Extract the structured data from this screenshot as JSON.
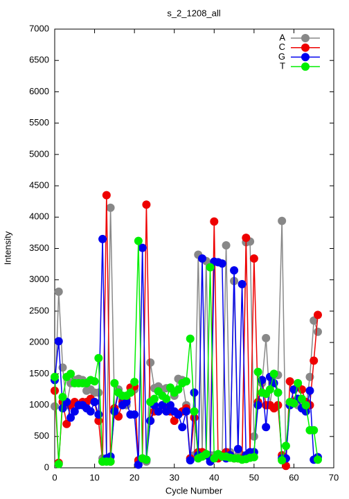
{
  "chart_data": {
    "type": "line",
    "title": "s_2_1208_all",
    "x_label": "Cycle Number",
    "y_label": "Intensity",
    "x": [
      0,
      1,
      2,
      3,
      4,
      5,
      6,
      7,
      8,
      9,
      10,
      11,
      12,
      13,
      14,
      15,
      16,
      17,
      18,
      19,
      20,
      21,
      22,
      23,
      24,
      25,
      26,
      27,
      28,
      29,
      30,
      31,
      32,
      33,
      34,
      35,
      36,
      37,
      38,
      39,
      40,
      41,
      42,
      43,
      44,
      45,
      46,
      47,
      48,
      49,
      50,
      51,
      52,
      53,
      54,
      55,
      56,
      57,
      58,
      59,
      60,
      61,
      62,
      63,
      64,
      65,
      66
    ],
    "xlim": [
      0,
      70
    ],
    "xticks": [
      0,
      10,
      20,
      30,
      40,
      50,
      60,
      70
    ],
    "ylim": [
      0,
      7000
    ],
    "yticks": [
      0,
      500,
      1000,
      1500,
      2000,
      2500,
      3000,
      3500,
      4000,
      4500,
      5000,
      5500,
      6000,
      6500,
      7000
    ],
    "legend": "top-right",
    "series": [
      {
        "name": "A",
        "color": "#888888",
        "values": [
          980,
          2810,
          1600,
          1000,
          1350,
          1400,
          1420,
          1400,
          1230,
          1250,
          1200,
          1200,
          150,
          150,
          4150,
          950,
          1250,
          1100,
          1000,
          1200,
          1250,
          100,
          150,
          100,
          1680,
          1270,
          1300,
          1250,
          1270,
          1270,
          1150,
          1420,
          1400,
          1000,
          150,
          200,
          3400,
          250,
          3300,
          200,
          200,
          200,
          200,
          3550,
          250,
          2980,
          200,
          200,
          3600,
          3610,
          500,
          1000,
          1350,
          2070,
          1000,
          1480,
          1480,
          3940,
          150,
          1000,
          1050,
          1000,
          1000,
          950,
          1450,
          2350,
          2170
        ]
      },
      {
        "name": "C",
        "color": "#ee0000",
        "values": [
          1230,
          80,
          1050,
          700,
          1000,
          1050,
          1000,
          1050,
          1050,
          1100,
          1050,
          750,
          100,
          4350,
          100,
          950,
          820,
          1050,
          1100,
          1280,
          1300,
          120,
          150,
          4200,
          750,
          900,
          900,
          1000,
          950,
          900,
          750,
          850,
          900,
          950,
          150,
          800,
          250,
          250,
          200,
          150,
          3930,
          150,
          200,
          250,
          200,
          150,
          150,
          150,
          3670,
          200,
          3340,
          1050,
          1400,
          1000,
          1000,
          950,
          1000,
          200,
          30,
          1380,
          1050,
          1300,
          1250,
          1050,
          1000,
          1710,
          2440
        ]
      },
      {
        "name": "G",
        "color": "#0000ee",
        "values": [
          1400,
          2020,
          950,
          1050,
          800,
          900,
          1000,
          1000,
          950,
          900,
          1050,
          850,
          3650,
          150,
          180,
          900,
          1200,
          1000,
          1050,
          850,
          850,
          50,
          3510,
          130,
          750,
          1000,
          900,
          1000,
          900,
          1000,
          900,
          850,
          650,
          900,
          120,
          1200,
          200,
          3340,
          200,
          100,
          3290,
          3280,
          3260,
          150,
          200,
          3150,
          300,
          2930,
          200,
          250,
          250,
          1000,
          1400,
          650,
          1450,
          1350,
          1200,
          150,
          150,
          1000,
          1250,
          1100,
          950,
          900,
          1230,
          130,
          170
        ]
      },
      {
        "name": "T",
        "color": "#00ee00",
        "values": [
          1450,
          60,
          1130,
          1450,
          1500,
          1350,
          1350,
          1350,
          1350,
          1400,
          1380,
          1750,
          100,
          100,
          100,
          1350,
          1200,
          1150,
          1150,
          1200,
          1370,
          3620,
          150,
          130,
          1050,
          1100,
          1220,
          1150,
          1100,
          1280,
          1200,
          1250,
          1350,
          1380,
          2060,
          900,
          150,
          180,
          220,
          3200,
          150,
          220,
          180,
          180,
          160,
          150,
          150,
          130,
          140,
          160,
          170,
          1530,
          1200,
          1180,
          1250,
          1500,
          1200,
          120,
          350,
          1050,
          1030,
          1350,
          1100,
          1000,
          600,
          600,
          130
        ]
      }
    ]
  }
}
